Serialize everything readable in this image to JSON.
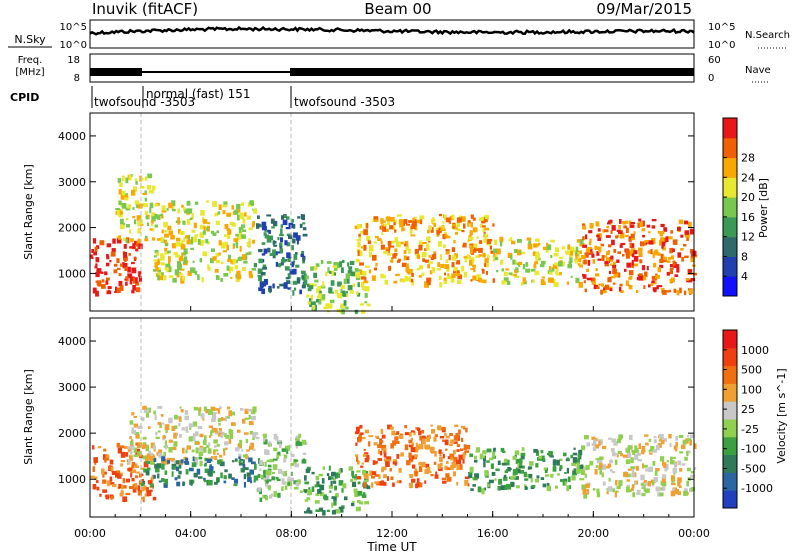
{
  "header": {
    "station": "Inuvik (fitACF)",
    "beam": "Beam 00",
    "date": "09/Mar/2015"
  },
  "nsky_panel": {
    "left_label": "N.Sky",
    "tick_top": "10^5",
    "tick_bottom": "10^0",
    "right_ticks": [
      "10^5",
      "10^0"
    ],
    "right_label": "N.Search"
  },
  "freq_panel": {
    "left_label_top": "Freq.",
    "left_label_bottom": "[MHz]",
    "left_ticks": [
      "18",
      "8"
    ],
    "right_ticks": [
      "60",
      "0"
    ],
    "right_label": "Nave"
  },
  "cpid_panel": {
    "label": "CPID",
    "modes": [
      {
        "text": "twofsound -3503",
        "start_hour": 0
      },
      {
        "text": "normal (fast) 151",
        "start_hour": 2
      },
      {
        "text": "twofsound -3503",
        "start_hour": 8
      }
    ]
  },
  "time_axis": {
    "title": "Time UT",
    "tick_labels": [
      "00:00",
      "04:00",
      "08:00",
      "12:00",
      "16:00",
      "20:00",
      "00:00"
    ]
  },
  "power_panel": {
    "ylabel": "Slant Range [km]",
    "y_ticks": [
      "1000",
      "2000",
      "3000",
      "4000"
    ],
    "colorbar_title": "Power [dB]",
    "colorbar_ticks": [
      "4",
      "8",
      "12",
      "16",
      "20",
      "24",
      "28"
    ],
    "colors": [
      "#1010ff",
      "#2040b0",
      "#2e6a6a",
      "#3a9a55",
      "#78c850",
      "#e8e830",
      "#f8a800",
      "#f06000",
      "#e81818"
    ]
  },
  "velocity_panel": {
    "ylabel": "Slant Range [km]",
    "y_ticks": [
      "1000",
      "2000",
      "3000",
      "4000"
    ],
    "colorbar_title": "Velocity [m s^-1]",
    "colorbar_ticks": [
      "1000",
      "500",
      "100",
      "25",
      "-25",
      "-100",
      "-500",
      "-1000"
    ],
    "colors": [
      "#2040c0",
      "#2a66a0",
      "#2e7a5a",
      "#3aa040",
      "#90d050",
      "#c8c8c8",
      "#f0a030",
      "#f07010",
      "#f04010",
      "#e81818"
    ]
  },
  "chart_data": {
    "type": "heatmap",
    "x_range_hours": [
      0,
      24
    ],
    "y_range_km": [
      180,
      4500
    ],
    "power_regions": [
      {
        "t0": 0.0,
        "t1": 2.0,
        "r0": 600,
        "r1": 1800,
        "level": 8
      },
      {
        "t0": 1.0,
        "t1": 2.5,
        "r0": 1700,
        "r1": 3200,
        "level": 5
      },
      {
        "t0": 2.5,
        "t1": 6.5,
        "r0": 900,
        "r1": 2600,
        "level": 5
      },
      {
        "t0": 6.5,
        "t1": 8.5,
        "r0": 600,
        "r1": 2300,
        "level": 2
      },
      {
        "t0": 8.5,
        "t1": 11.0,
        "r0": 200,
        "r1": 1300,
        "level": 4
      },
      {
        "t0": 10.5,
        "t1": 16.0,
        "r0": 800,
        "r1": 2300,
        "level": 6
      },
      {
        "t0": 16.0,
        "t1": 19.5,
        "r0": 800,
        "r1": 1800,
        "level": 5
      },
      {
        "t0": 19.5,
        "t1": 24.0,
        "r0": 600,
        "r1": 2200,
        "level": 7
      }
    ],
    "velocity_regions": [
      {
        "t0": 0.0,
        "t1": 2.5,
        "r0": 600,
        "r1": 1800,
        "level": 7
      },
      {
        "t0": 1.5,
        "t1": 6.5,
        "r0": 1400,
        "r1": 2600,
        "level": 5
      },
      {
        "t0": 2.0,
        "t1": 6.5,
        "r0": 900,
        "r1": 1500,
        "level": 2
      },
      {
        "t0": 6.5,
        "t1": 8.5,
        "r0": 600,
        "r1": 2000,
        "level": 4
      },
      {
        "t0": 8.5,
        "t1": 11.0,
        "r0": 300,
        "r1": 1300,
        "level": 3
      },
      {
        "t0": 10.5,
        "t1": 15.0,
        "r0": 900,
        "r1": 2200,
        "level": 7
      },
      {
        "t0": 15.0,
        "t1": 19.5,
        "r0": 800,
        "r1": 1700,
        "level": 3
      },
      {
        "t0": 19.5,
        "t1": 24.0,
        "r0": 700,
        "r1": 2000,
        "level": 5
      }
    ]
  }
}
